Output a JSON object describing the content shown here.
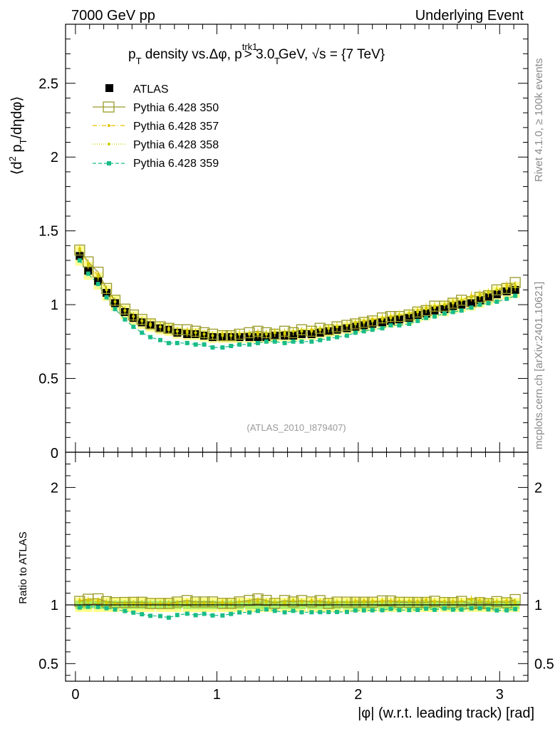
{
  "header": {
    "left": "7000 GeV pp",
    "right": "Underlying Event"
  },
  "side_labels": {
    "rivet": "Rivet 4.1.0, ≥ 100k events",
    "mcplots": "mcplots.cern.ch [arXiv:2401.10621]"
  },
  "colors": {
    "atlas": "#000000",
    "p350": "#9a9a2a",
    "p357": "#e6c200",
    "p358": "#cccc00",
    "p359": "#1abc88",
    "band_outer": "#ffff88",
    "band_inner": "#aaee66"
  },
  "chart_data": {
    "type": "scatter",
    "title": "p_T density vs.Δφ, p_T^trk1 > 3.0 GeV, √s = {7 TeV}",
    "title_parts": {
      "p": "p",
      "sub_t": "T",
      "mid": " density vs.Δφ, p",
      "sup_trk": "trk1",
      "tail": " > 3.0 GeV, ",
      "sqrt": "√",
      "s_eq": "s = {7 TeV}"
    },
    "ylabel_parts": {
      "a": "⟨d",
      "b": "2",
      "c": " p",
      "d": "T",
      "e": "/dηdφ⟩"
    },
    "ylabel_text": "⟨d² p_T/dηdφ⟩",
    "xlabel": "|φ| (w.r.t. leading track) [rad]",
    "ratio_ylabel": "Ratio to ATLAS",
    "analysis_tag": "(ATLAS_2010_I879407)",
    "xlim": [
      -0.07,
      3.2
    ],
    "ylim": [
      0,
      2.9
    ],
    "ratio_ylim": [
      0.35,
      2.3
    ],
    "x_ticks": [
      0,
      1,
      2,
      3
    ],
    "x_tick_labels": [
      "0",
      "1",
      "2",
      "3"
    ],
    "y_ticks": [
      0.5,
      1,
      1.5,
      2,
      2.5
    ],
    "y_tick_labels": [
      "0.5",
      "1",
      "1.5",
      "2",
      "2.5"
    ],
    "y_zero_label": "0",
    "ratio_ticks": [
      0.5,
      1,
      2
    ],
    "ratio_tick_labels": [
      "0.5",
      "1",
      "2"
    ],
    "x": [
      0.03,
      0.09,
      0.16,
      0.22,
      0.28,
      0.35,
      0.41,
      0.47,
      0.53,
      0.6,
      0.66,
      0.72,
      0.79,
      0.85,
      0.91,
      0.97,
      1.04,
      1.1,
      1.16,
      1.23,
      1.29,
      1.35,
      1.41,
      1.48,
      1.54,
      1.6,
      1.67,
      1.73,
      1.79,
      1.85,
      1.92,
      1.98,
      2.04,
      2.1,
      2.17,
      2.23,
      2.29,
      2.36,
      2.42,
      2.48,
      2.54,
      2.61,
      2.67,
      2.73,
      2.8,
      2.86,
      2.92,
      2.98,
      3.05,
      3.11
    ],
    "series": [
      {
        "name": "ATLAS",
        "marker": "filled-square",
        "values": [
          1.33,
          1.23,
          1.16,
          1.08,
          1.01,
          0.95,
          0.91,
          0.88,
          0.86,
          0.84,
          0.83,
          0.81,
          0.8,
          0.8,
          0.79,
          0.78,
          0.78,
          0.78,
          0.78,
          0.78,
          0.78,
          0.78,
          0.79,
          0.79,
          0.79,
          0.8,
          0.8,
          0.81,
          0.82,
          0.83,
          0.84,
          0.85,
          0.86,
          0.87,
          0.88,
          0.89,
          0.9,
          0.91,
          0.93,
          0.94,
          0.96,
          0.97,
          0.99,
          1.0,
          1.01,
          1.03,
          1.05,
          1.07,
          1.09,
          1.1
        ]
      },
      {
        "name": "Pythia 6.428 350",
        "marker": "open-square",
        "line": "solid",
        "values": [
          1.37,
          1.29,
          1.22,
          1.11,
          1.03,
          0.97,
          0.93,
          0.9,
          0.87,
          0.85,
          0.84,
          0.83,
          0.83,
          0.82,
          0.81,
          0.8,
          0.79,
          0.79,
          0.8,
          0.81,
          0.82,
          0.81,
          0.8,
          0.82,
          0.81,
          0.83,
          0.82,
          0.84,
          0.83,
          0.85,
          0.86,
          0.87,
          0.88,
          0.89,
          0.91,
          0.92,
          0.92,
          0.93,
          0.95,
          0.96,
          0.99,
          0.99,
          1.01,
          1.03,
          1.02,
          1.05,
          1.06,
          1.1,
          1.11,
          1.15
        ]
      },
      {
        "name": "Pythia 6.428 357",
        "marker": "small-dot",
        "line": "dash-dot",
        "values": [
          1.38,
          1.28,
          1.2,
          1.1,
          1.02,
          0.96,
          0.92,
          0.89,
          0.87,
          0.85,
          0.84,
          0.82,
          0.82,
          0.81,
          0.8,
          0.79,
          0.8,
          0.79,
          0.8,
          0.8,
          0.81,
          0.8,
          0.81,
          0.8,
          0.82,
          0.82,
          0.83,
          0.83,
          0.84,
          0.85,
          0.86,
          0.88,
          0.89,
          0.9,
          0.91,
          0.92,
          0.93,
          0.94,
          0.96,
          0.98,
          0.99,
          1.0,
          1.02,
          1.03,
          1.06,
          1.07,
          1.08,
          1.1,
          1.13,
          1.13
        ]
      },
      {
        "name": "Pythia 6.428 358",
        "marker": "small-dot",
        "line": "dotted",
        "values": [
          1.37,
          1.27,
          1.19,
          1.1,
          1.02,
          0.96,
          0.92,
          0.89,
          0.86,
          0.85,
          0.83,
          0.82,
          0.81,
          0.81,
          0.8,
          0.79,
          0.79,
          0.79,
          0.8,
          0.8,
          0.8,
          0.8,
          0.81,
          0.81,
          0.82,
          0.82,
          0.82,
          0.83,
          0.84,
          0.85,
          0.86,
          0.87,
          0.88,
          0.89,
          0.9,
          0.91,
          0.93,
          0.94,
          0.95,
          0.97,
          0.98,
          1.0,
          1.01,
          1.03,
          1.05,
          1.06,
          1.08,
          1.1,
          1.11,
          1.12
        ]
      },
      {
        "name": "Pythia 6.428 359",
        "marker": "filled-square-small",
        "line": "dashed",
        "values": [
          1.3,
          1.21,
          1.14,
          1.05,
          0.97,
          0.9,
          0.85,
          0.81,
          0.78,
          0.76,
          0.74,
          0.74,
          0.74,
          0.73,
          0.73,
          0.71,
          0.71,
          0.72,
          0.73,
          0.73,
          0.74,
          0.75,
          0.75,
          0.74,
          0.75,
          0.75,
          0.75,
          0.76,
          0.77,
          0.78,
          0.79,
          0.81,
          0.82,
          0.83,
          0.84,
          0.86,
          0.86,
          0.87,
          0.89,
          0.91,
          0.92,
          0.94,
          0.95,
          0.96,
          0.98,
          1.0,
          1.01,
          1.02,
          1.04,
          1.06
        ]
      }
    ],
    "legend": [
      "ATLAS",
      "Pythia 6.428 350",
      "Pythia 6.428 357",
      "Pythia 6.428 358",
      "Pythia 6.428 359"
    ],
    "legend_placement": "top-left"
  }
}
